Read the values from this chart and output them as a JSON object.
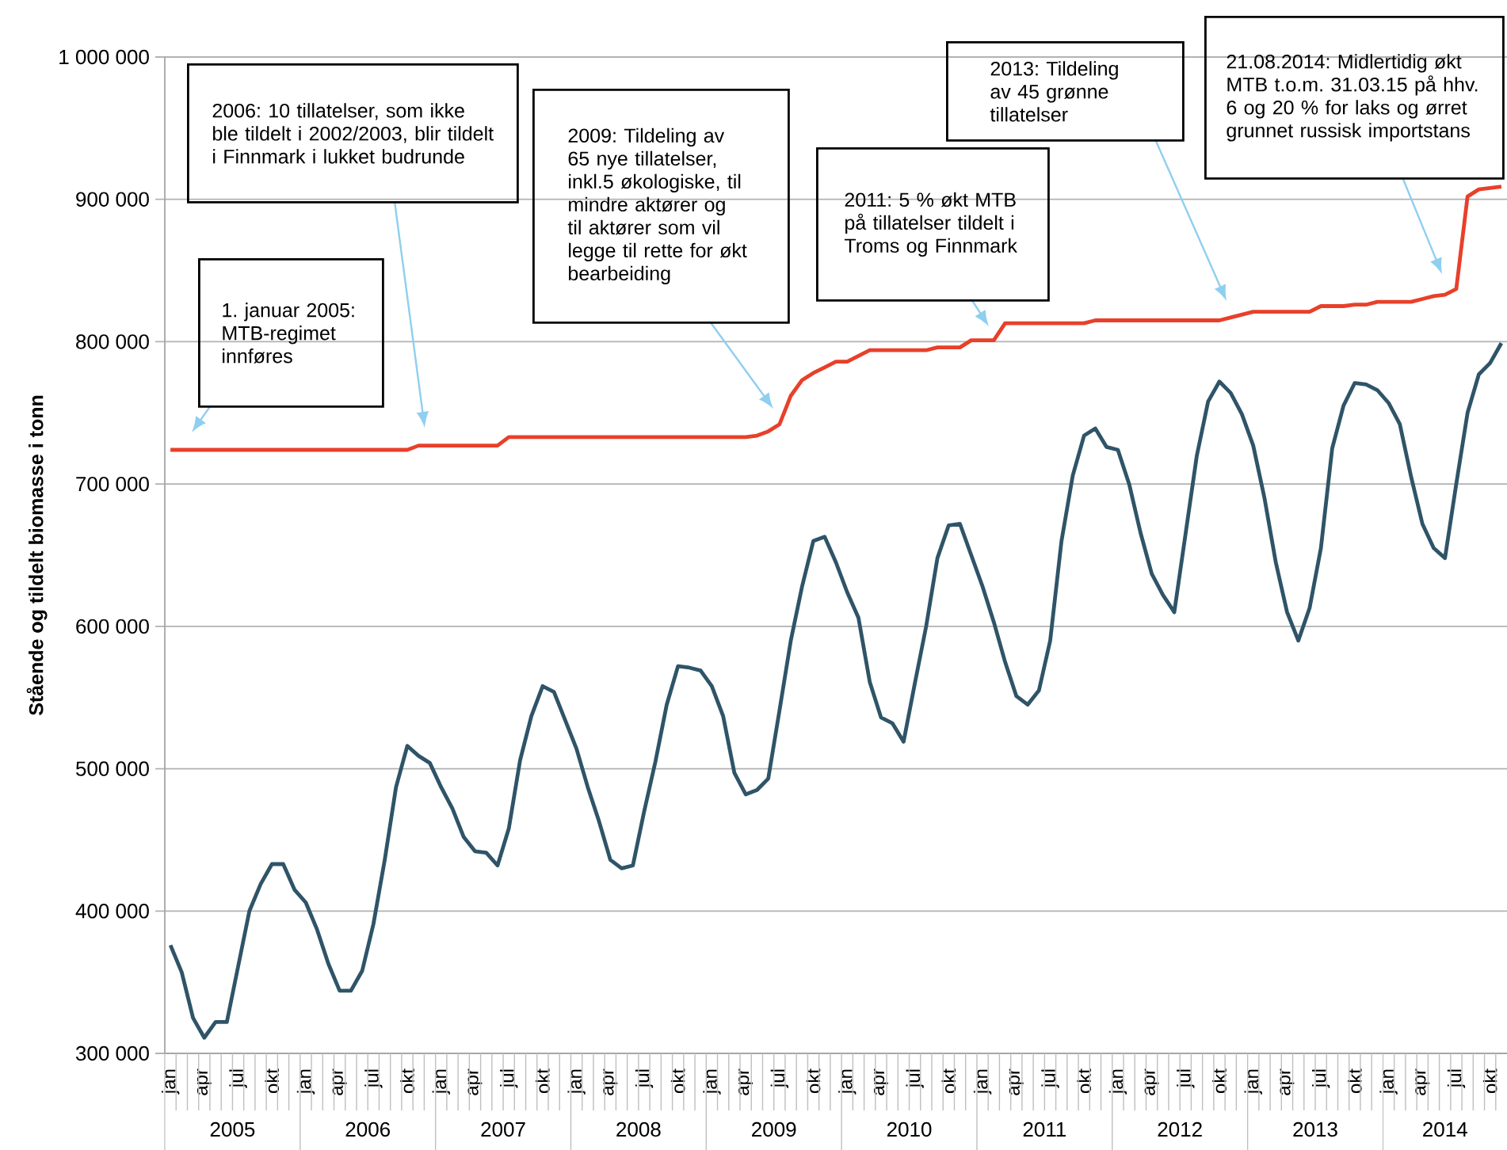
{
  "chart_data": {
    "type": "line",
    "ylabel": "Stående og tildelt biomasse i tonn",
    "categories": [
      "jan",
      null,
      null,
      "apr",
      null,
      null,
      "jul",
      null,
      null,
      "okt",
      null,
      null,
      "jan",
      null,
      null,
      "apr",
      null,
      null,
      "jul",
      null,
      null,
      "okt",
      null,
      null,
      "jan",
      null,
      null,
      "apr",
      null,
      null,
      "jul",
      null,
      null,
      "okt",
      null,
      null,
      "jan",
      null,
      null,
      "apr",
      null,
      null,
      "jul",
      null,
      null,
      "okt",
      null,
      null,
      "jan",
      null,
      null,
      "apr",
      null,
      null,
      "jul",
      null,
      null,
      "okt",
      null,
      null,
      "jan",
      null,
      null,
      "apr",
      null,
      null,
      "jul",
      null,
      null,
      "okt",
      null,
      null,
      "jan",
      null,
      null,
      "apr",
      null,
      null,
      "jul",
      null,
      null,
      "okt",
      null,
      null,
      "jan",
      null,
      null,
      "apr",
      null,
      null,
      "jul",
      null,
      null,
      "okt",
      null,
      null,
      "jan",
      null,
      null,
      "apr",
      null,
      null,
      "jul",
      null,
      null,
      "okt",
      null,
      null,
      "jan",
      null,
      null,
      "apr",
      null,
      null,
      "jul",
      null,
      null,
      "okt",
      null
    ],
    "series": [
      {
        "color": "#e8402a",
        "values": [
          724000,
          724000,
          724000,
          724000,
          724000,
          724000,
          724000,
          724000,
          724000,
          724000,
          724000,
          724000,
          724000,
          724000,
          724000,
          724000,
          724000,
          724000,
          724000,
          724000,
          724000,
          724000,
          727000,
          727000,
          727000,
          727000,
          727000,
          727000,
          727000,
          727000,
          733000,
          733000,
          733000,
          733000,
          733000,
          733000,
          733000,
          733000,
          733000,
          733000,
          733000,
          733000,
          733000,
          733000,
          733000,
          733000,
          733000,
          733000,
          733000,
          733000,
          733000,
          733000,
          734000,
          737000,
          742000,
          762000,
          773000,
          778000,
          782000,
          786000,
          786000,
          790000,
          794000,
          794000,
          794000,
          794000,
          794000,
          794000,
          796000,
          796000,
          796000,
          801000,
          801000,
          801000,
          813000,
          813000,
          813000,
          813000,
          813000,
          813000,
          813000,
          813000,
          815000,
          815000,
          815000,
          815000,
          815000,
          815000,
          815000,
          815000,
          815000,
          815000,
          815000,
          815000,
          817000,
          819000,
          821000,
          821000,
          821000,
          821000,
          821000,
          821000,
          825000,
          825000,
          825000,
          826000,
          826000,
          828000,
          828000,
          828000,
          828000,
          830000,
          832000,
          833000,
          837000,
          902000,
          907000,
          908000,
          909000
        ]
      },
      {
        "color": "#2f5468",
        "values": [
          376000,
          357000,
          325000,
          311000,
          322000,
          322000,
          361000,
          400000,
          419000,
          433000,
          433000,
          415000,
          406000,
          387000,
          363000,
          344000,
          344000,
          358000,
          391000,
          436000,
          487000,
          516000,
          509000,
          504000,
          487000,
          472000,
          452000,
          442000,
          441000,
          432000,
          458000,
          506000,
          537000,
          558000,
          554000,
          534000,
          514000,
          487000,
          463000,
          436000,
          430000,
          432000,
          470000,
          505000,
          545000,
          572000,
          571000,
          569000,
          558000,
          537000,
          497000,
          482000,
          485000,
          493000,
          541000,
          590000,
          628000,
          660000,
          663000,
          645000,
          624000,
          606000,
          561000,
          536000,
          532000,
          519000,
          560000,
          600000,
          648000,
          671000,
          672000,
          650000,
          628000,
          603000,
          575000,
          551000,
          545000,
          555000,
          590000,
          660000,
          706000,
          734000,
          739000,
          726000,
          724000,
          700000,
          666000,
          637000,
          622000,
          610000,
          665000,
          720000,
          758000,
          772000,
          764000,
          749000,
          727000,
          690000,
          645000,
          610000,
          590000,
          613000,
          655000,
          725000,
          755000,
          771000,
          770000,
          766000,
          757000,
          742000,
          705000,
          672000,
          655000,
          648000,
          700000,
          750000,
          777000,
          785000,
          799000
        ]
      }
    ],
    "ylim": [
      300000,
      1000000
    ],
    "yticks": [
      {
        "value": 300000,
        "label": "300 000"
      },
      {
        "value": 400000,
        "label": "400 000"
      },
      {
        "value": 500000,
        "label": "500 000"
      },
      {
        "value": 600000,
        "label": "600 000"
      },
      {
        "value": 700000,
        "label": "700 000"
      },
      {
        "value": 800000,
        "label": "800 000"
      },
      {
        "value": 900000,
        "label": "900 000"
      },
      {
        "value": 1000000,
        "label": "1 000 000"
      }
    ],
    "grid": "y",
    "annotations": [
      "1. januar 2005: MTB-regimet innføres",
      "2006: 10 tillatelser, som ikke ble tildelt i 2002/2003, blir tildelt i Finnmark i lukket budrunde",
      "2009: Tildeling av 65 nye tillatelser, inkl.5 økologiske, til mindre aktører og til aktører som vil legge til rette for økt bearbeiding",
      "2011: 5 % økt MTB på tillatelser tildelt i Troms og Finnmark",
      "2013: Tildeling av 45 grønne tillatelser",
      "21.08.2014: Midlertidig økt MTB t.o.m. 31.03.15 på hhv. 6 og 20 % for laks og ørret grunnet russisk importstans",
      "2005",
      "2006",
      "2007",
      "2008",
      "2009",
      "2010",
      "2011",
      "2012",
      "2013",
      "2014"
    ]
  }
}
